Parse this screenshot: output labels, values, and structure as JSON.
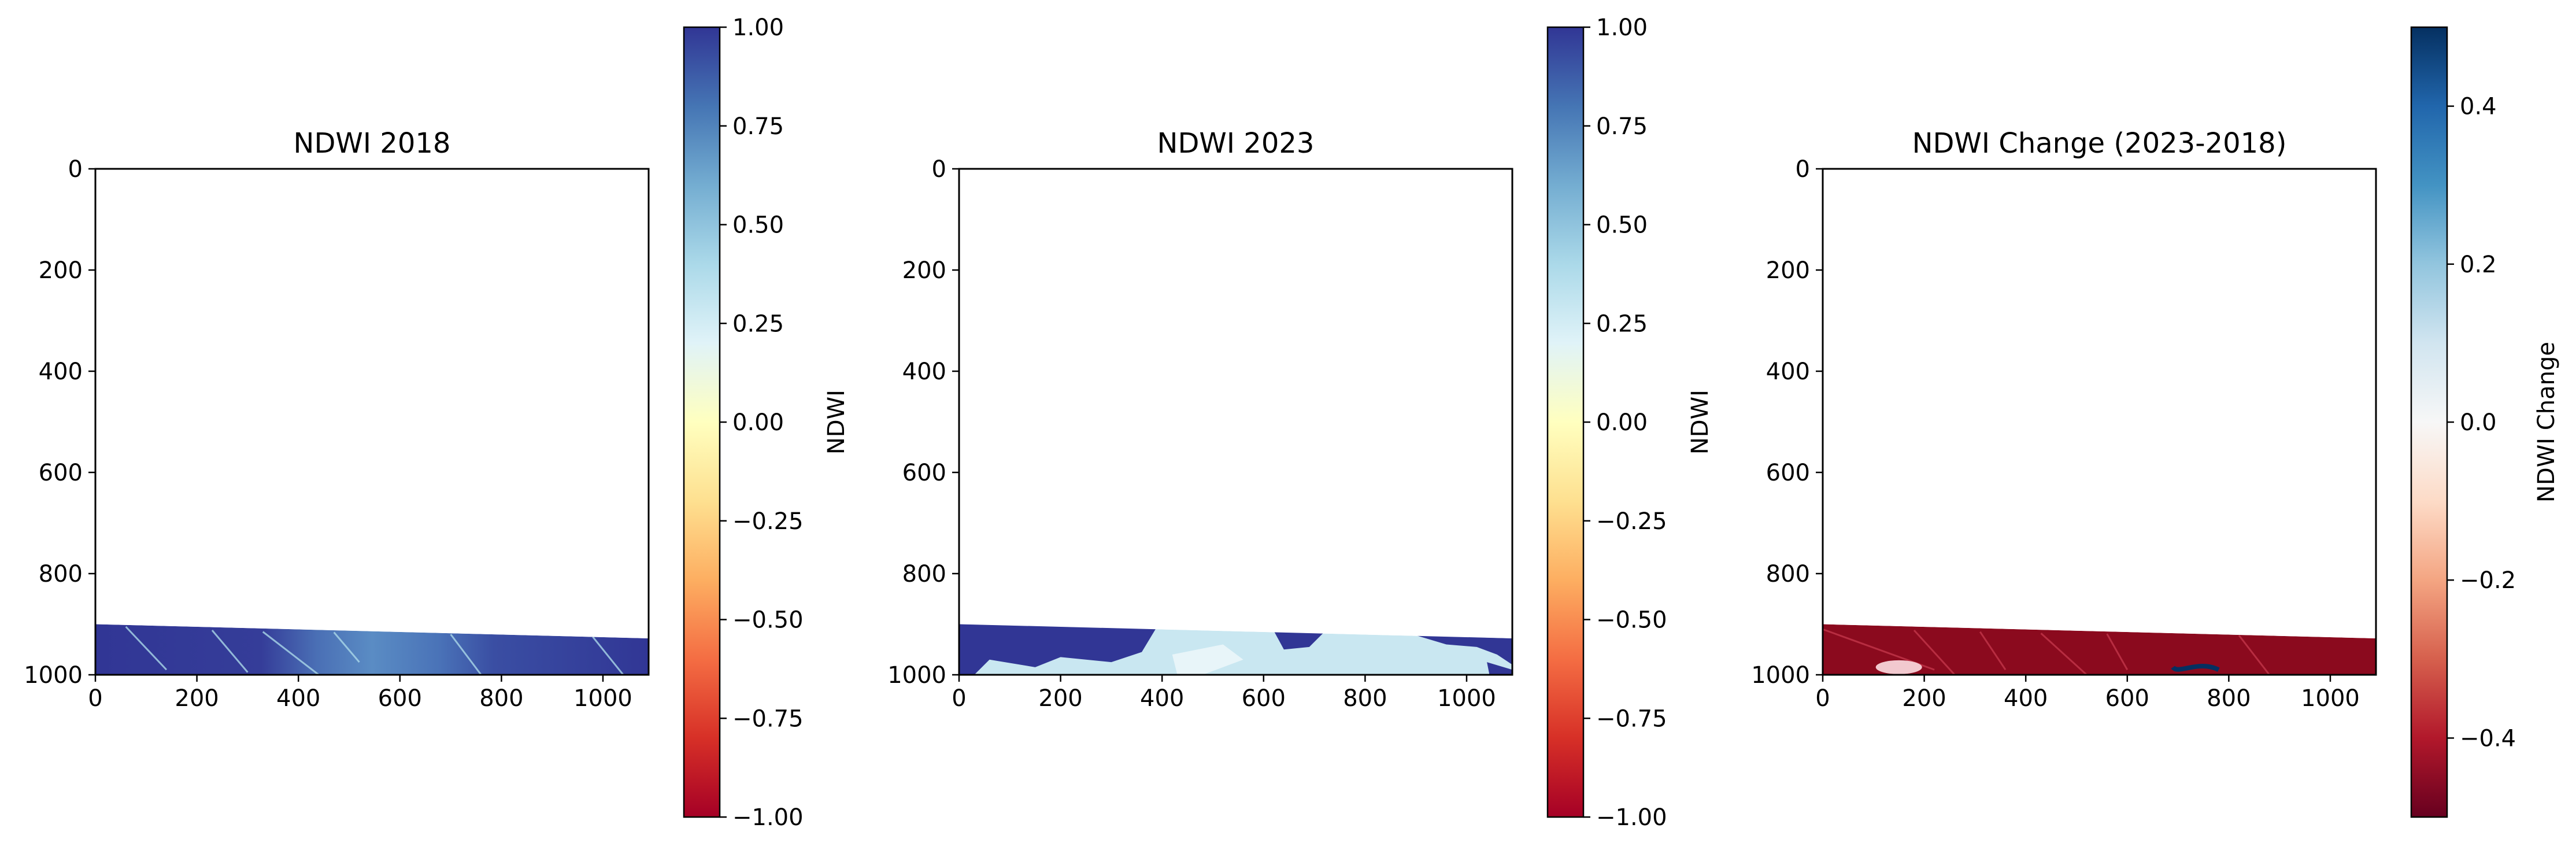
{
  "chart_data": [
    {
      "type": "heatmap",
      "title": "NDWI 2018",
      "xlim": [
        0,
        1090
      ],
      "ylim": [
        1000,
        0
      ],
      "y_inverted": true,
      "xticks": [
        0,
        200,
        400,
        600,
        800,
        1000
      ],
      "yticks": [
        0,
        200,
        400,
        600,
        800,
        1000
      ],
      "data_region": {
        "y_top_at_x0": 900,
        "y_top_at_xmax": 928,
        "y_bottom": 1000
      },
      "dominant_value": 0.95,
      "lighter_patches": [
        {
          "x_range": [
            400,
            700
          ],
          "value": 0.6
        }
      ],
      "colorbar": {
        "label": "NDWI",
        "colormap": "RdYlBu",
        "range": [
          -1.0,
          1.0
        ],
        "ticks": [
          1.0,
          0.75,
          0.5,
          0.25,
          0.0,
          -0.25,
          -0.5,
          -0.75,
          -1.0
        ],
        "tick_labels": [
          "1.00",
          "0.75",
          "0.50",
          "0.25",
          "0.00",
          "−0.25",
          "−0.50",
          "−0.75",
          "−1.00"
        ]
      }
    },
    {
      "type": "heatmap",
      "title": "NDWI 2023",
      "xlim": [
        0,
        1090
      ],
      "ylim": [
        1000,
        0
      ],
      "y_inverted": true,
      "xticks": [
        0,
        200,
        400,
        600,
        800,
        1000
      ],
      "yticks": [
        0,
        200,
        400,
        600,
        800,
        1000
      ],
      "data_region": {
        "y_top_at_x0": 900,
        "y_top_at_xmax": 928,
        "y_bottom": 1000
      },
      "regions": [
        {
          "x_range": [
            0,
            400
          ],
          "value": 0.95
        },
        {
          "x_range": [
            400,
            1090
          ],
          "value": 0.3
        },
        {
          "x_range": [
            620,
            700
          ],
          "value": 0.95
        },
        {
          "x_range": [
            900,
            1090
          ],
          "value": 0.95
        }
      ],
      "colorbar": {
        "label": "NDWI",
        "colormap": "RdYlBu",
        "range": [
          -1.0,
          1.0
        ],
        "ticks": [
          1.0,
          0.75,
          0.5,
          0.25,
          0.0,
          -0.25,
          -0.5,
          -0.75,
          -1.0
        ],
        "tick_labels": [
          "1.00",
          "0.75",
          "0.50",
          "0.25",
          "0.00",
          "−0.25",
          "−0.50",
          "−0.75",
          "−1.00"
        ]
      }
    },
    {
      "type": "heatmap",
      "title": "NDWI Change (2023-2018)",
      "xlim": [
        0,
        1090
      ],
      "ylim": [
        1000,
        0
      ],
      "y_inverted": true,
      "xticks": [
        0,
        200,
        400,
        600,
        800,
        1000
      ],
      "yticks": [
        0,
        200,
        400,
        600,
        800,
        1000
      ],
      "data_region": {
        "y_top_at_x0": 900,
        "y_top_at_xmax": 928,
        "y_bottom": 1000
      },
      "dominant_value": -0.45,
      "colorbar": {
        "label": "NDWI Change",
        "colormap": "RdBu",
        "range": [
          -0.5,
          0.5
        ],
        "ticks": [
          0.4,
          0.2,
          0.0,
          -0.2,
          -0.4
        ],
        "tick_labels": [
          "0.4",
          "0.2",
          "0.0",
          "−0.2",
          "−0.4"
        ]
      }
    }
  ],
  "colors": {
    "ndwi_high": "#313695",
    "ndwi_mid_light": "#e0f3f8",
    "ndwi_light_blue": "#abd9e9",
    "change_negative": "#8b0a1e",
    "change_positive": "#053061"
  }
}
